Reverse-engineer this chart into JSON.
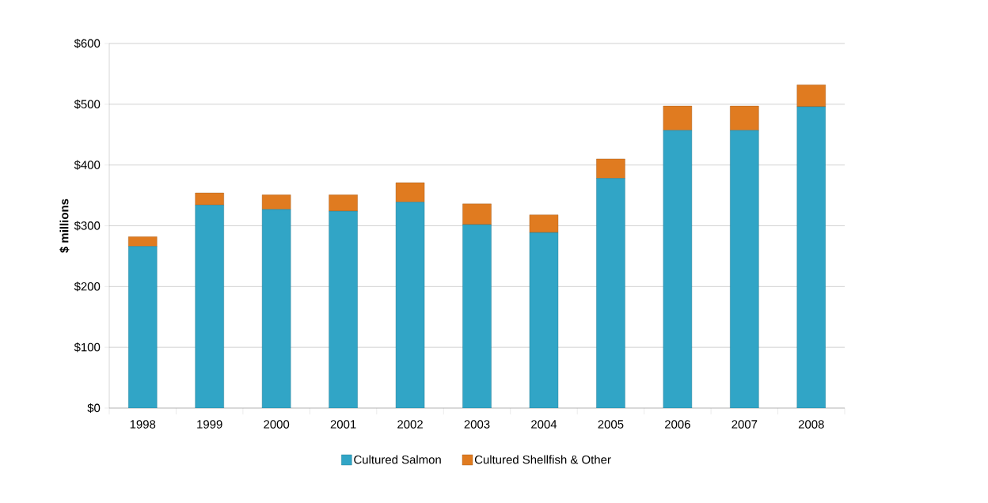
{
  "chart_data": {
    "type": "bar",
    "stacked": true,
    "ylabel": "$ millions",
    "categories": [
      "1998",
      "1999",
      "2000",
      "2001",
      "2002",
      "2003",
      "2004",
      "2005",
      "2006",
      "2007",
      "2008"
    ],
    "series": [
      {
        "name": "Cultured Salmon",
        "color": "#31a5c6",
        "values": [
          266,
          334,
          327,
          324,
          339,
          302,
          289,
          378,
          457,
          457,
          496
        ]
      },
      {
        "name": "Cultured Shellfish & Other",
        "color": "#e07b20",
        "values": [
          16,
          20,
          24,
          27,
          32,
          34,
          29,
          32,
          40,
          40,
          36
        ]
      }
    ],
    "ylim": [
      0,
      600
    ],
    "yticks": [
      {
        "value": 0,
        "label": "$0"
      },
      {
        "value": 100,
        "label": "$100"
      },
      {
        "value": 200,
        "label": "$200"
      },
      {
        "value": 300,
        "label": "$300"
      },
      {
        "value": 400,
        "label": "$400"
      },
      {
        "value": 500,
        "label": "$500"
      },
      {
        "value": 600,
        "label": "$600"
      }
    ],
    "grid": "y",
    "legend": "bottom"
  }
}
